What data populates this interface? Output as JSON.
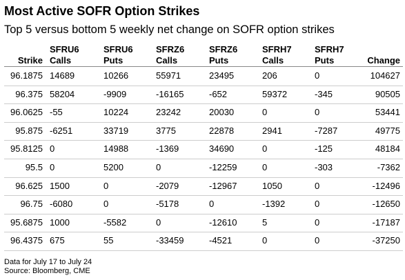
{
  "header": {
    "title": "Most Active SOFR Option Strikes",
    "subtitle": "Top 5 versus bottom 5 weekly net change on SOFR option strikes"
  },
  "table": {
    "columns": [
      [
        "Strike"
      ],
      [
        "SFRU6",
        "Calls"
      ],
      [
        "SFRU6",
        "Puts"
      ],
      [
        "SFRZ6",
        "Calls"
      ],
      [
        "SFRZ6",
        "Puts"
      ],
      [
        "SFRH7",
        "Calls"
      ],
      [
        "SFRH7",
        "Puts"
      ],
      [
        "Change"
      ]
    ],
    "rows": [
      [
        96.1875,
        14689,
        10266,
        55971,
        23495,
        206,
        0,
        104627
      ],
      [
        96.375,
        58204,
        -9909,
        -16165,
        -652,
        59372,
        -345,
        90505
      ],
      [
        96.0625,
        -55,
        10224,
        23242,
        20030,
        0,
        0,
        53441
      ],
      [
        95.875,
        -6251,
        33719,
        3775,
        22878,
        2941,
        -7287,
        49775
      ],
      [
        95.8125,
        0,
        14988,
        -1369,
        34690,
        0,
        -125,
        48184
      ],
      [
        95.5,
        0,
        5200,
        0,
        -12259,
        0,
        -303,
        -7362
      ],
      [
        96.625,
        1500,
        0,
        -2079,
        -12967,
        1050,
        0,
        -12496
      ],
      [
        96.75,
        -6080,
        0,
        -5178,
        0,
        -1392,
        0,
        -12650
      ],
      [
        95.6875,
        1000,
        -5582,
        0,
        -12610,
        5,
        0,
        -17187
      ],
      [
        96.4375,
        675,
        55,
        -33459,
        -4521,
        0,
        0,
        -37250
      ]
    ]
  },
  "footer": {
    "notes": [
      "Data for July 17 to July 24",
      "Source: Bloomberg, CME"
    ]
  }
}
